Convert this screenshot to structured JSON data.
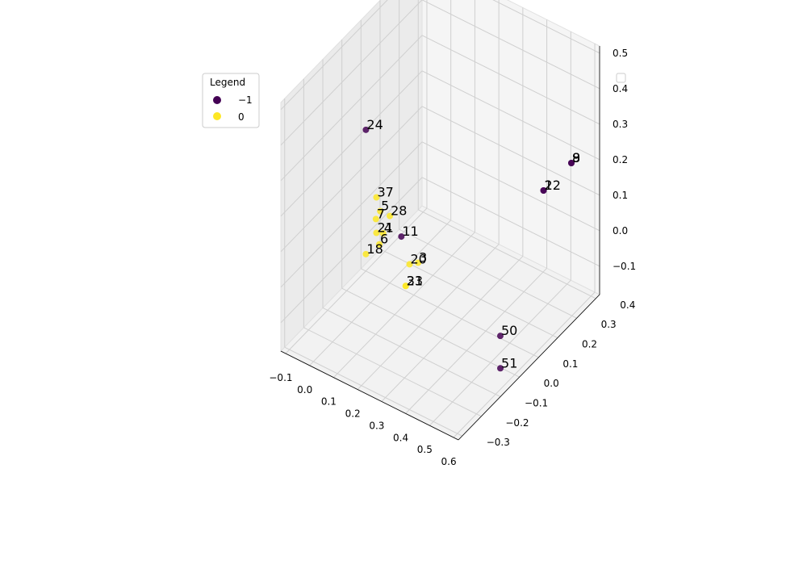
{
  "chart_data": {
    "type": "scatter",
    "projection": "3d",
    "title": "",
    "xlabel": "",
    "ylabel": "",
    "zlabel": "",
    "xlim": [
      -0.12,
      0.62
    ],
    "ylim": [
      -0.32,
      0.42
    ],
    "zlim": [
      -0.18,
      0.52
    ],
    "x_ticks": [
      "−0.1",
      "0.0",
      "0.1",
      "0.2",
      "0.3",
      "0.4",
      "0.5",
      "0.6"
    ],
    "y_ticks": [
      "−0.3",
      "−0.2",
      "−0.1",
      "0.0",
      "0.1",
      "0.2",
      "0.3",
      "0.4"
    ],
    "z_ticks": [
      "−0.1",
      "0.0",
      "0.1",
      "0.2",
      "0.3",
      "0.4",
      "0.5"
    ],
    "grid": true,
    "legend": {
      "title": "Legend",
      "placement": "top-left",
      "entries": [
        {
          "label": "−1",
          "color": "#440154"
        },
        {
          "label": "0",
          "color": "#fde725"
        }
      ]
    },
    "empty_legend_placement": "top-right",
    "colors": {
      "-1": "#440154",
      "0": "#fde725"
    },
    "points": [
      {
        "label": "24",
        "cluster": -1,
        "x": -0.02,
        "y": 0.0,
        "z": 0.3
      },
      {
        "label": "2",
        "cluster": -1,
        "x": 0.45,
        "y": 0.34,
        "z": 0.1
      },
      {
        "label": "12",
        "cluster": -1,
        "x": 0.45,
        "y": 0.34,
        "z": 0.1
      },
      {
        "label": "9",
        "cluster": -1,
        "x": 0.55,
        "y": 0.36,
        "z": 0.2
      },
      {
        "label": "8",
        "cluster": -1,
        "x": 0.55,
        "y": 0.36,
        "z": 0.2
      },
      {
        "label": "11",
        "cluster": -1,
        "x": 0.08,
        "y": 0.06,
        "z": 0.0
      },
      {
        "label": "50",
        "cluster": -1,
        "x": 0.58,
        "y": -0.05,
        "z": -0.05
      },
      {
        "label": "51",
        "cluster": -1,
        "x": 0.62,
        "y": -0.1,
        "z": -0.1
      },
      {
        "label": "37",
        "cluster": 0,
        "x": 0.0,
        "y": 0.03,
        "z": 0.1
      },
      {
        "label": "28",
        "cluster": 0,
        "x": 0.04,
        "y": 0.05,
        "z": 0.05
      },
      {
        "label": "4",
        "cluster": 0,
        "x": 0.02,
        "y": 0.04,
        "z": 0.0
      },
      {
        "label": "21",
        "cluster": 0,
        "x": 0.0,
        "y": 0.03,
        "z": 0.0
      },
      {
        "label": "6",
        "cluster": 0,
        "x": 0.02,
        "y": 0.02,
        "z": -0.02
      },
      {
        "label": "18",
        "cluster": 0,
        "x": -0.02,
        "y": 0.0,
        "z": -0.05
      },
      {
        "label": "20",
        "cluster": 0,
        "x": 0.13,
        "y": 0.04,
        "z": -0.05
      },
      {
        "label": "3",
        "cluster": 0,
        "x": 0.15,
        "y": 0.06,
        "z": -0.05
      },
      {
        "label": "23",
        "cluster": 0,
        "x": 0.13,
        "y": 0.02,
        "z": -0.1
      },
      {
        "label": "31",
        "cluster": 0,
        "x": 0.13,
        "y": 0.02,
        "z": -0.1
      },
      {
        "label": "5",
        "cluster": 0,
        "x": 0.0,
        "y": 0.05,
        "z": 0.05
      },
      {
        "label": "7",
        "cluster": 0,
        "x": -0.01,
        "y": 0.04,
        "z": 0.03
      }
    ]
  }
}
